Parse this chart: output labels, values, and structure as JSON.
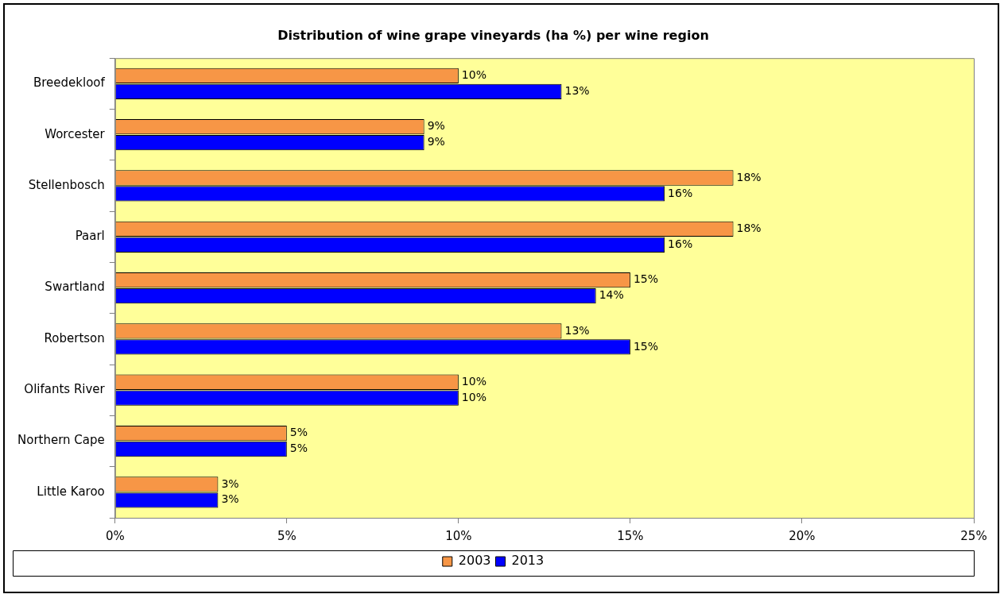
{
  "chart_data": {
    "type": "bar",
    "orientation": "horizontal",
    "title": "Distribution of wine grape vineyards (ha %) per wine region",
    "categories": [
      "Breedekloof",
      "Worcester",
      "Stellenbosch",
      "Paarl",
      "Swartland",
      "Robertson",
      "Olifants River",
      "Northern Cape",
      "Little Karoo"
    ],
    "series": [
      {
        "name": "2003",
        "color": "#f79646",
        "values": [
          10,
          9,
          18,
          18,
          15,
          13,
          10,
          5,
          3
        ],
        "value_labels": [
          "10%",
          "9%",
          "18%",
          "18%",
          "15%",
          "13%",
          "10%",
          "5%",
          "3%"
        ]
      },
      {
        "name": "2013",
        "color": "#0000ff",
        "values": [
          13,
          9,
          16,
          16,
          14,
          15,
          10,
          5,
          3
        ],
        "value_labels": [
          "13%",
          "9%",
          "16%",
          "16%",
          "14%",
          "15%",
          "10%",
          "5%",
          "3%"
        ]
      }
    ],
    "xlim": [
      0,
      25
    ],
    "xticks": [
      {
        "value": 0,
        "label": "0%"
      },
      {
        "value": 5,
        "label": "5%"
      },
      {
        "value": 10,
        "label": "10%"
      },
      {
        "value": 15,
        "label": "15%"
      },
      {
        "value": 20,
        "label": "20%"
      },
      {
        "value": 25,
        "label": "25%"
      }
    ],
    "grid": false,
    "legend": "bottom"
  }
}
